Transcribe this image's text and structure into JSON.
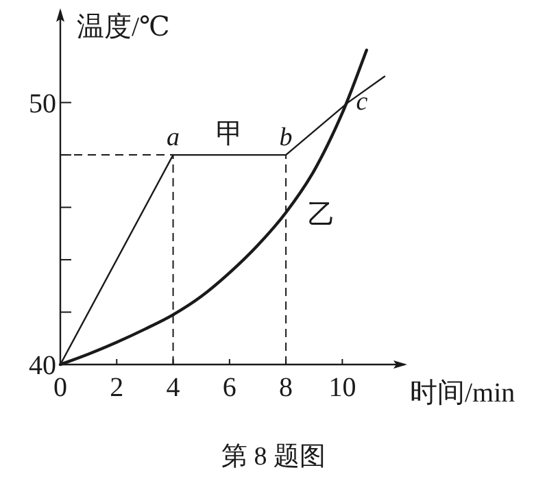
{
  "chart_data": {
    "type": "line",
    "xlabel": "时间/min",
    "ylabel": "温度/℃",
    "xlim": [
      0,
      12.3
    ],
    "ylim": [
      40,
      53.6
    ],
    "xticks": [
      0,
      2,
      4,
      6,
      8,
      10
    ],
    "yticks": [
      40,
      {
        "value": 42,
        "label": null
      },
      {
        "value": 44,
        "label": null
      },
      {
        "value": 46,
        "label": null
      },
      {
        "value": 48,
        "label": null
      },
      50
    ],
    "grid": false,
    "marker": "none",
    "line_style": "solid",
    "series": [
      {
        "name": "甲",
        "color": "#1a1a1a",
        "x": [
          0,
          4,
          8,
          10.2,
          11.5
        ],
        "values": [
          40,
          48,
          48,
          50,
          51.0
        ]
      },
      {
        "name": "乙",
        "color": "#1a1a1a",
        "x": [
          0,
          1,
          2,
          3,
          4,
          5,
          6,
          7,
          8,
          9,
          10,
          10.86
        ],
        "values": [
          40,
          40.4,
          40.85,
          41.35,
          41.9,
          42.6,
          43.5,
          44.55,
          45.8,
          47.4,
          49.6,
          52.0
        ]
      }
    ],
    "ref_lines": [
      {
        "axis": "y",
        "value": 48,
        "line_style": "dashed",
        "color": "#1a1a1a"
      },
      {
        "axis": "x",
        "value": 4,
        "line_style": "dashed",
        "color": "#1a1a1a"
      },
      {
        "axis": "x",
        "value": 8,
        "line_style": "dashed",
        "color": "#1a1a1a"
      }
    ],
    "annotations": [
      {
        "text": "a",
        "x": 4,
        "y": 48
      },
      {
        "text": "b",
        "x": 8,
        "y": 48
      },
      {
        "text": "c",
        "x": 10.2,
        "y": 50
      },
      "第 8 题图"
    ]
  }
}
